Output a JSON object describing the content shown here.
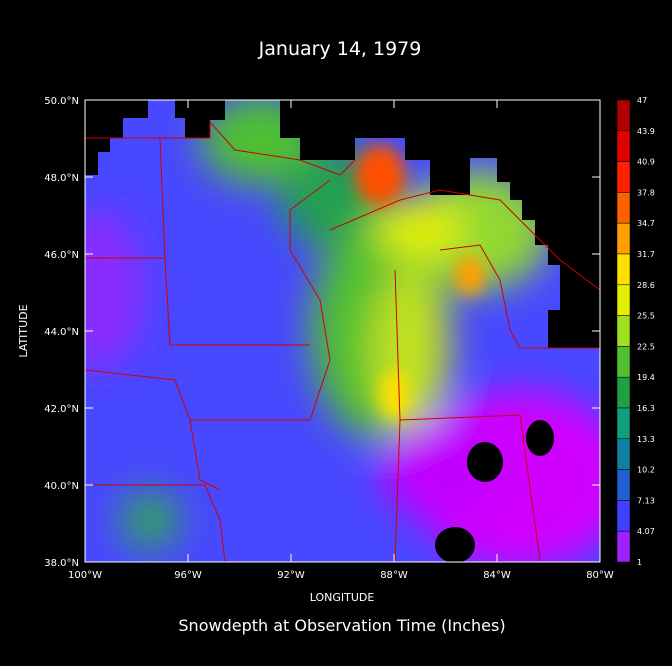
{
  "title": "January 14, 1979",
  "caption": "Snowdepth at Observation Time (Inches)",
  "map": {
    "x_axis_label": "LONGITUDE",
    "y_axis_label": "LATITUDE",
    "xticks": [
      "100°W",
      "96°W",
      "92°W",
      "88°W",
      "84°W",
      "80°W"
    ],
    "yticks": [
      "50.0°N",
      "48.0°N",
      "46.0°N",
      "44.0°N",
      "42.0°N",
      "40.0°N",
      "38.0°N"
    ]
  },
  "colorbar": {
    "labels": [
      "47",
      "43.9",
      "40.9",
      "37.8",
      "34.7",
      "31.7",
      "28.6",
      "25.5",
      "22.5",
      "19.4",
      "16.3",
      "13.3",
      "10.2",
      "7.13",
      "4.07",
      "1"
    ],
    "colors": [
      "#b00000",
      "#e00000",
      "#ff2000",
      "#ff6000",
      "#ffa000",
      "#ffe000",
      "#e0f000",
      "#a0e020",
      "#50c030",
      "#20a040",
      "#10a080",
      "#1080a0",
      "#2060d0",
      "#4040ff",
      "#a020ff"
    ]
  }
}
